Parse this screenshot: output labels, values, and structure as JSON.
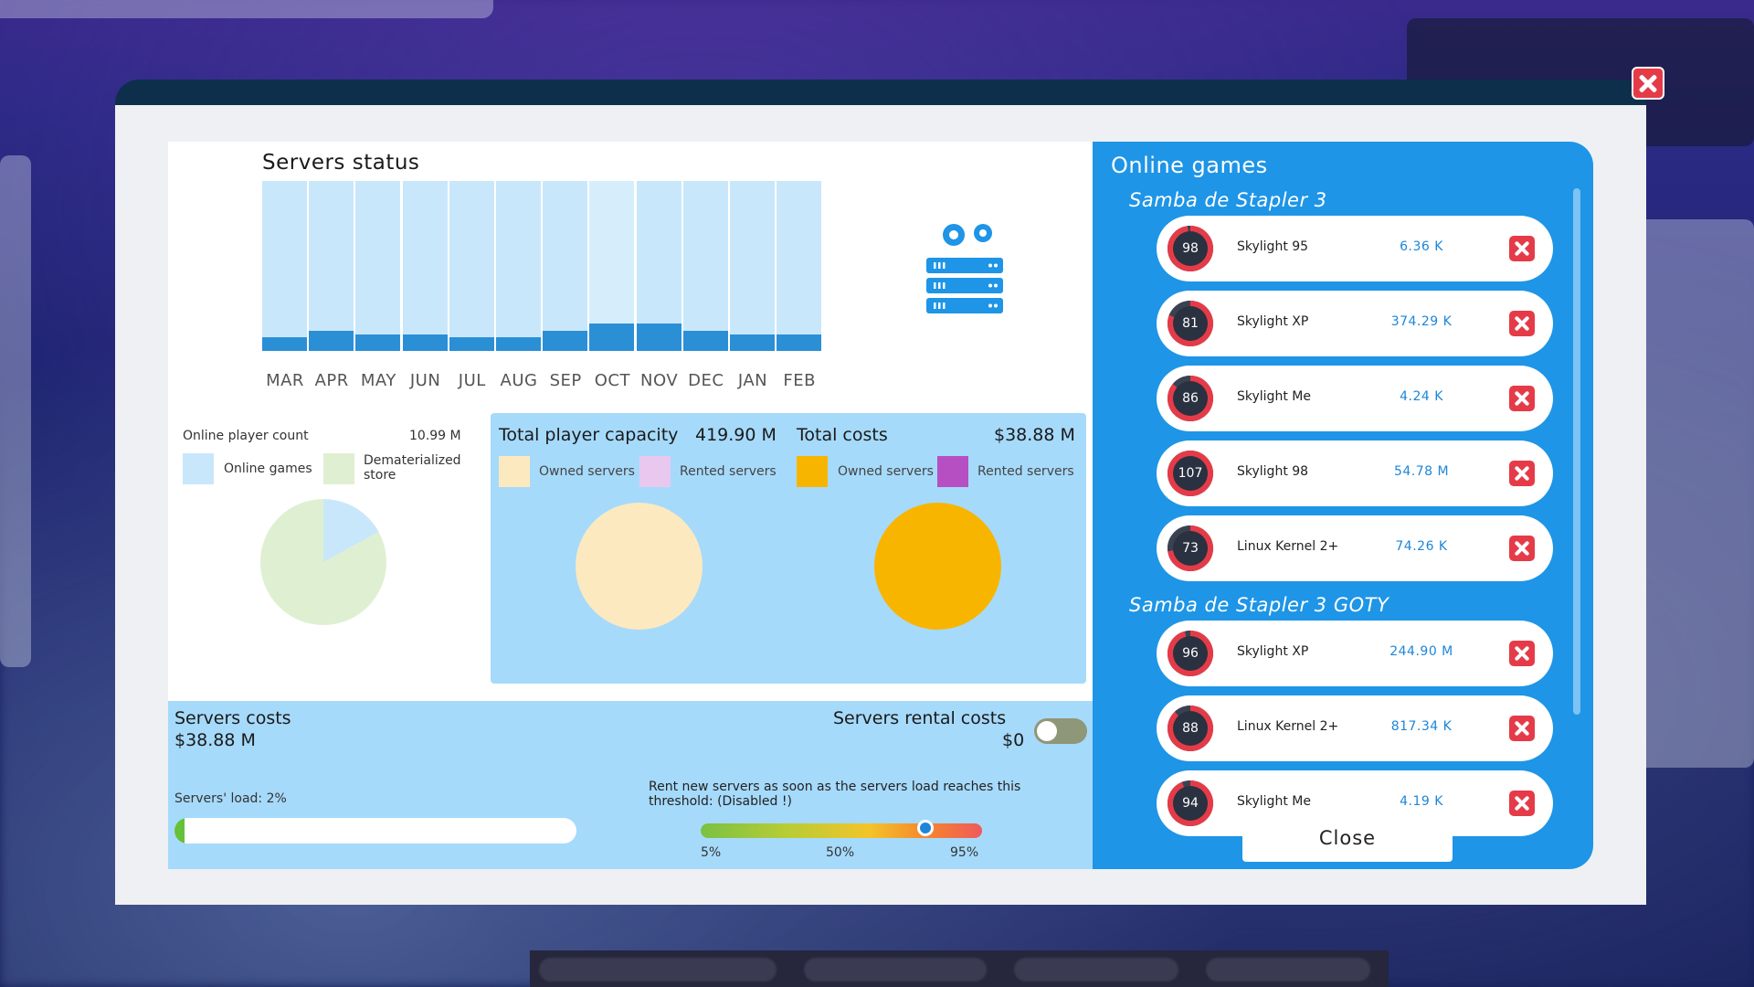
{
  "servers_status": {
    "title": "Servers status",
    "months": [
      "MAR",
      "APR",
      "MAY",
      "JUN",
      "JUL",
      "AUG",
      "SEP",
      "OCT",
      "NOV",
      "DEC",
      "JAN",
      "FEB"
    ],
    "load_fractions": [
      0.01,
      0.015,
      0.012,
      0.012,
      0.01,
      0.01,
      0.015,
      0.02,
      0.02,
      0.015,
      0.012,
      0.012
    ]
  },
  "player_count": {
    "label": "Online player count",
    "value": "10.99 M",
    "legend": [
      {
        "label": "Online games",
        "color": "#c8e7fb"
      },
      {
        "label": "Dematerialized store",
        "color": "#dff0d2"
      }
    ],
    "online_games_share": 0.17
  },
  "capacity": {
    "label": "Total player capacity",
    "value": "419.90 M",
    "legend": [
      {
        "label": "Owned servers",
        "color": "#fde9c0"
      },
      {
        "label": "Rented servers",
        "color": "#e8c8ef"
      }
    ]
  },
  "costs": {
    "label": "Total costs",
    "value": "$38.88 M",
    "legend": [
      {
        "label": "Owned servers",
        "color": "#f8b500"
      },
      {
        "label": "Rented servers",
        "color": "#b64fc2"
      }
    ]
  },
  "servers_costs": {
    "label": "Servers costs",
    "value": "$38.88 M"
  },
  "rental_costs": {
    "label": "Servers rental costs",
    "value": "$0",
    "enabled": false
  },
  "load": {
    "label": "Servers' load: 2%",
    "percent": 2
  },
  "threshold": {
    "text": "Rent new servers as soon as the servers load reaches this threshold: (Disabled !)",
    "ticks": [
      "5%",
      "50%",
      "95%"
    ],
    "value_percent": 80
  },
  "online_games": {
    "title": "Online games",
    "games": [
      {
        "name": "Samba de Stapler 3",
        "platforms": [
          {
            "score": "98",
            "platform": "Skylight 95",
            "value": "6.36 K"
          },
          {
            "score": "81",
            "platform": "Skylight XP",
            "value": "374.29 K"
          },
          {
            "score": "86",
            "platform": "Skylight Me",
            "value": "4.24 K"
          },
          {
            "score": "107",
            "platform": "Skylight 98",
            "value": "54.78 M"
          },
          {
            "score": "73",
            "platform": "Linux Kernel 2+",
            "value": "74.26 K"
          }
        ]
      },
      {
        "name": "Samba de Stapler 3 GOTY",
        "platforms": [
          {
            "score": "96",
            "platform": "Skylight XP",
            "value": "244.90 M"
          },
          {
            "score": "88",
            "platform": "Linux Kernel 2+",
            "value": "817.34 K"
          },
          {
            "score": "94",
            "platform": "Skylight Me",
            "value": "4.19 K"
          }
        ]
      }
    ]
  },
  "close_label": "Close",
  "colors": {
    "accent": "#1e95e6",
    "danger": "#e53b48",
    "chart_bar": "#c8e7fb"
  }
}
